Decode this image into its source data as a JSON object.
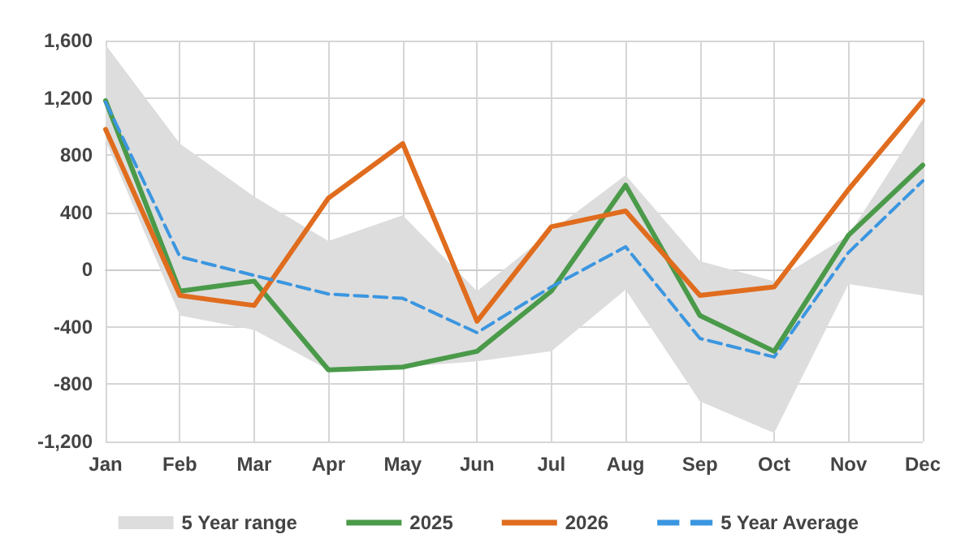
{
  "chart_data": {
    "type": "line",
    "categories": [
      "Jan",
      "Feb",
      "Mar",
      "Apr",
      "May",
      "Jun",
      "Jul",
      "Aug",
      "Sep",
      "Oct",
      "Nov",
      "Dec"
    ],
    "series": [
      {
        "name": "5 Year range",
        "type": "area",
        "color": "#dddddd",
        "values": [
          null,
          null,
          null,
          null,
          null,
          null,
          null,
          null,
          null,
          null,
          null,
          null
        ],
        "lower": [
          900,
          -320,
          -420,
          -700,
          -680,
          -640,
          -570,
          -140,
          -920,
          -1140,
          -100,
          -180
        ],
        "upper": [
          1570,
          880,
          510,
          200,
          380,
          -150,
          270,
          660,
          60,
          -80,
          240,
          1050
        ]
      },
      {
        "name": "2025",
        "color": "#4a9a4a",
        "values": [
          1180,
          -150,
          -80,
          -700,
          -680,
          -570,
          -150,
          590,
          -320,
          -570,
          240,
          730
        ]
      },
      {
        "name": "2026",
        "color": "#e06c1e",
        "values": [
          980,
          -180,
          -250,
          500,
          880,
          -360,
          300,
          410,
          -180,
          -120,
          560,
          1180
        ]
      },
      {
        "name": "5 Year Average",
        "color": "#3b96e0",
        "line_style": "dashed",
        "values": [
          1170,
          90,
          -40,
          -170,
          -200,
          -440,
          -120,
          160,
          -480,
          -610,
          120,
          620
        ]
      }
    ],
    "ylim": [
      -1200,
      1600
    ],
    "yticks": [
      {
        "value": -1200,
        "label": "-1,200"
      },
      -800,
      -400,
      0,
      400,
      800,
      {
        "value": 1200,
        "label": "1,200"
      },
      {
        "value": 1600,
        "label": "1,600"
      }
    ],
    "grid": true,
    "legend": "bottom",
    "marker": "none"
  }
}
